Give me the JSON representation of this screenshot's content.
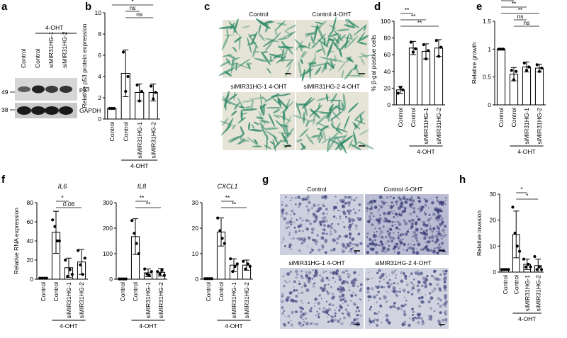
{
  "panel_letters": {
    "a": "a",
    "b": "b",
    "c": "c",
    "d": "d",
    "e": "e",
    "f": "f",
    "g": "g",
    "h": "h"
  },
  "colors": {
    "axis": "#000000",
    "bar_fill": "#ffffff",
    "point": "#000000",
    "scalebar": "#000000"
  },
  "blot": {
    "treatment": "4-OHT",
    "lanes": [
      "Control",
      "Control",
      "siMIR31HG-1",
      "siMIR31HG-2"
    ],
    "bands": [
      "p53",
      "GAPDH"
    ],
    "markers": [
      "49",
      "38"
    ]
  },
  "micro_c": {
    "captions": [
      "Control",
      "Control 4-OHT",
      "siMIR31HG-1 4-OHT",
      "siMIR31HG-2 4-OHT"
    ],
    "stain": "beta-gal (blue-green)"
  },
  "micro_g": {
    "captions": [
      "Control",
      "Control 4-OHT",
      "siMIR31HG-1 4-OHT",
      "siMIR31HG-2 4-OHT"
    ],
    "stain": "crystal violet (purple)"
  },
  "chart_data": [
    {
      "id": "b",
      "type": "bar",
      "title": "",
      "xlabel": "",
      "ylabel": "Relative p53 protein expression",
      "categories": [
        "Control",
        "Control",
        "siMIR31HG-1",
        "siMIR31HG-2"
      ],
      "group_label": "4-OHT",
      "group_span": [
        1,
        3
      ],
      "values": [
        1.0,
        4.3,
        2.5,
        2.5
      ],
      "errors": [
        0.05,
        2.2,
        0.8,
        0.8
      ],
      "points": [
        [
          1.0,
          1.0,
          1.0
        ],
        [
          6.3,
          2.6,
          4.0
        ],
        [
          3.2,
          1.7,
          2.6
        ],
        [
          3.1,
          1.9,
          2.5
        ]
      ],
      "ylim": [
        0,
        10
      ],
      "yticks": [
        0,
        2,
        4,
        6,
        8,
        10
      ],
      "significance": [
        {
          "from": 0,
          "to": 1,
          "label": "*"
        },
        {
          "from": 0,
          "to": 2,
          "label": "*"
        },
        {
          "from": 0,
          "to": 3,
          "label": "*"
        },
        {
          "from": 1,
          "to": 2,
          "label": "ns"
        },
        {
          "from": 1,
          "to": 3,
          "label": "ns"
        }
      ]
    },
    {
      "id": "d",
      "type": "bar",
      "title": "",
      "xlabel": "",
      "ylabel": "% β-gal positive cells",
      "categories": [
        "Control",
        "Control",
        "siMIR31HG-1",
        "siMIR31HG-2"
      ],
      "group_label": "4-OHT",
      "group_span": [
        1,
        3
      ],
      "values": [
        18,
        68,
        64,
        68
      ],
      "errors": [
        4,
        8,
        9,
        10
      ],
      "points": [
        [
          14,
          21,
          18
        ],
        [
          75,
          63,
          67
        ],
        [
          72,
          55,
          65
        ],
        [
          77,
          58,
          69
        ]
      ],
      "ylim": [
        0,
        100
      ],
      "yticks": [
        0,
        20,
        40,
        60,
        80,
        100
      ],
      "significance": [
        {
          "from": 0,
          "to": 1,
          "label": "**"
        },
        {
          "from": 0,
          "to": 2,
          "label": "**"
        },
        {
          "from": 0,
          "to": 3,
          "label": "**"
        }
      ]
    },
    {
      "id": "e",
      "type": "bar",
      "title": "",
      "xlabel": "",
      "ylabel": "Relative growth",
      "categories": [
        "Control",
        "Control",
        "siMIR31HG-1",
        "siMIR31HG-2"
      ],
      "group_label": "4-OHT",
      "group_span": [
        1,
        3
      ],
      "values": [
        1.0,
        0.55,
        0.68,
        0.66
      ],
      "errors": [
        0.0,
        0.12,
        0.09,
        0.07
      ],
      "points": [
        [
          1.0,
          1.0,
          1.0
        ],
        [
          0.62,
          0.45,
          0.6
        ],
        [
          0.75,
          0.62,
          0.68
        ],
        [
          0.72,
          0.6,
          0.66
        ]
      ],
      "ylim": [
        0,
        1.5
      ],
      "yticks": [
        0,
        0.5,
        1.0,
        1.5
      ],
      "significance": [
        {
          "from": 0,
          "to": 1,
          "label": "*"
        },
        {
          "from": 0,
          "to": 2,
          "label": "**"
        },
        {
          "from": 0,
          "to": 3,
          "label": "**"
        },
        {
          "from": 1,
          "to": 2,
          "label": "ns"
        },
        {
          "from": 1,
          "to": 3,
          "label": "ns"
        }
      ]
    },
    {
      "id": "f-IL6",
      "type": "bar",
      "title": "IL6",
      "xlabel": "",
      "ylabel": "Relative RNA expression",
      "categories": [
        "Control",
        "Control",
        "siMIR31HG-1",
        "siMIR31HG-2"
      ],
      "group_label": "4-OHT",
      "group_span": [
        1,
        3
      ],
      "values": [
        1,
        49,
        12,
        18
      ],
      "errors": [
        0.3,
        22,
        10,
        13
      ],
      "points": [
        [
          1,
          1,
          1,
          1
        ],
        [
          62,
          55,
          40,
          40
        ],
        [
          20,
          3,
          10,
          5
        ],
        [
          30,
          15,
          5,
          22
        ]
      ],
      "ylim": [
        0,
        80
      ],
      "yticks": [
        0,
        20,
        40,
        60,
        80
      ],
      "significance": [
        {
          "from": 1,
          "to": 2,
          "label": "*"
        },
        {
          "from": 1,
          "to": 3,
          "label": "0.06"
        }
      ]
    },
    {
      "id": "f-IL8",
      "type": "bar",
      "title": "IL8",
      "xlabel": "",
      "ylabel": "",
      "categories": [
        "Control",
        "Control",
        "siMIR31HG-1",
        "siMIR31HG-2"
      ],
      "group_label": "4-OHT",
      "group_span": [
        1,
        3
      ],
      "values": [
        1,
        167,
        25,
        27
      ],
      "errors": [
        0.5,
        70,
        15,
        15
      ],
      "points": [
        [
          1,
          1,
          1,
          1
        ],
        [
          230,
          180,
          140,
          100
        ],
        [
          40,
          20,
          15,
          30
        ],
        [
          30,
          20,
          35,
          15
        ]
      ],
      "ylim": [
        0,
        300
      ],
      "yticks": [
        0,
        100,
        200,
        300
      ],
      "significance": [
        {
          "from": 1,
          "to": 2,
          "label": "**"
        },
        {
          "from": 1,
          "to": 3,
          "label": "**"
        }
      ]
    },
    {
      "id": "f-CXCL1",
      "type": "bar",
      "title": "CXCL1",
      "xlabel": "",
      "ylabel": "",
      "categories": [
        "Control",
        "Control",
        "siMIR31HG-1",
        "siMIR31HG-2"
      ],
      "group_label": "4-OHT",
      "group_span": [
        1,
        3
      ],
      "values": [
        0.2,
        18.5,
        5.5,
        5.5
      ],
      "errors": [
        0.1,
        5.5,
        2.5,
        2.0
      ],
      "points": [
        [
          0.2,
          0.2,
          0.2,
          0.2
        ],
        [
          24,
          19,
          16,
          14
        ],
        [
          8,
          3,
          5,
          6
        ],
        [
          7,
          4,
          6,
          5
        ]
      ],
      "ylim": [
        0,
        30
      ],
      "yticks": [
        0,
        10,
        20,
        30
      ],
      "significance": [
        {
          "from": 1,
          "to": 2,
          "label": "**"
        },
        {
          "from": 1,
          "to": 3,
          "label": "**"
        }
      ]
    },
    {
      "id": "h",
      "type": "bar",
      "title": "",
      "xlabel": "",
      "ylabel": "Relative invasion",
      "categories": [
        "Control",
        "Control",
        "siMIR31HG-1",
        "siMIR31HG-2"
      ],
      "group_label": "4-OHT",
      "group_span": [
        1,
        3
      ],
      "values": [
        1.0,
        14.5,
        3.0,
        2.5
      ],
      "errors": [
        0.0,
        9.0,
        2.0,
        2.5
      ],
      "points": [
        [
          1,
          1,
          1,
          1
        ],
        [
          25,
          15,
          10,
          8
        ],
        [
          5,
          2,
          3,
          2
        ],
        [
          6,
          1,
          2,
          1
        ]
      ],
      "ylim": [
        0,
        30
      ],
      "yticks": [
        0,
        10,
        20,
        30
      ],
      "significance": [
        {
          "from": 1,
          "to": 2,
          "label": "*"
        },
        {
          "from": 1,
          "to": 3,
          "label": "*"
        }
      ]
    }
  ]
}
